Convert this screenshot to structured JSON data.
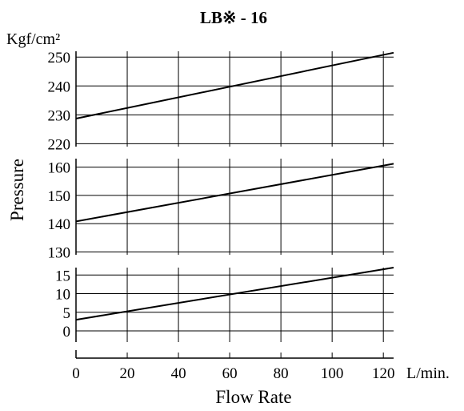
{
  "chart_data": {
    "type": "line",
    "title": "LB※ - 16",
    "ylabel": "Pressure",
    "yunit": "Kgf/cm²",
    "xlabel": "Flow Rate",
    "xunit": "L/min.",
    "x_ticks": [
      "0",
      "20",
      "40",
      "60",
      "80",
      "100",
      "120"
    ],
    "xlim": [
      0,
      124
    ],
    "grid": true,
    "panels": [
      {
        "ylim": [
          219,
          252
        ],
        "y_ticks": [
          220,
          230,
          240,
          250
        ],
        "y_tick_labels": [
          "220",
          "230",
          "240",
          "250"
        ],
        "series": [
          {
            "x": [
              0,
              124
            ],
            "y": [
              228.7,
              251.5
            ]
          }
        ]
      },
      {
        "ylim": [
          129,
          163
        ],
        "y_ticks": [
          130,
          140,
          150,
          160
        ],
        "y_tick_labels": [
          "130",
          "140",
          "150",
          "160"
        ],
        "series": [
          {
            "x": [
              0,
              124
            ],
            "y": [
              140.8,
              161.2
            ]
          }
        ]
      },
      {
        "ylim": [
          -3,
          17
        ],
        "y_ticks": [
          0,
          5,
          10,
          15
        ],
        "y_tick_labels": [
          "0",
          "5",
          "10",
          "15"
        ],
        "series": [
          {
            "x": [
              0,
              124
            ],
            "y": [
              3,
              17
            ]
          }
        ]
      }
    ]
  }
}
